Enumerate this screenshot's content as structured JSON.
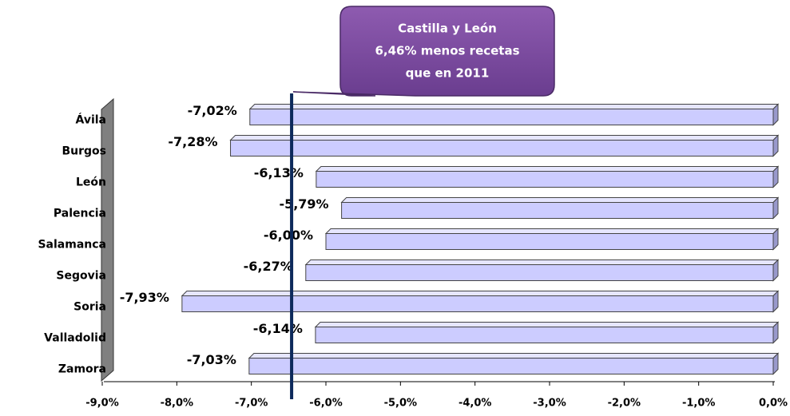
{
  "chart_data": {
    "type": "bar",
    "orientation": "horizontal",
    "categories": [
      "Ávila",
      "Burgos",
      "León",
      "Palencia",
      "Salamanca",
      "Segovia",
      "Soria",
      "Valladolid",
      "Zamora"
    ],
    "values": [
      -7.02,
      -7.28,
      -6.13,
      -5.79,
      -6.0,
      -6.27,
      -7.93,
      -6.14,
      -7.03
    ],
    "value_labels": [
      "-7,02%",
      "-7,28%",
      "-6,13%",
      "-5,79%",
      "-6,00%",
      "-6,27%",
      "-7,93%",
      "-6,14%",
      "-7,03%"
    ],
    "color": "#ccccff",
    "xlim": [
      -9,
      0
    ],
    "xticks": [
      {
        "value": -9,
        "label": "-9,0%"
      },
      {
        "value": -8,
        "label": "-8,0%"
      },
      {
        "value": -7,
        "label": "-7,0%"
      },
      {
        "value": -6,
        "label": "-6,0%"
      },
      {
        "value": -5,
        "label": "-5,0%"
      },
      {
        "value": -4,
        "label": "-4,0%"
      },
      {
        "value": -3,
        "label": "-3,0%"
      },
      {
        "value": -2,
        "label": "-2,0%"
      },
      {
        "value": -1,
        "label": "-1,0%"
      },
      {
        "value": 0,
        "label": "0,0%"
      }
    ],
    "reference_line": {
      "value": -6.46,
      "color": "#0d2a5c"
    },
    "annotation": {
      "lines": [
        "Castilla y León",
        "6,46% menos recetas",
        "que en 2011"
      ]
    }
  }
}
